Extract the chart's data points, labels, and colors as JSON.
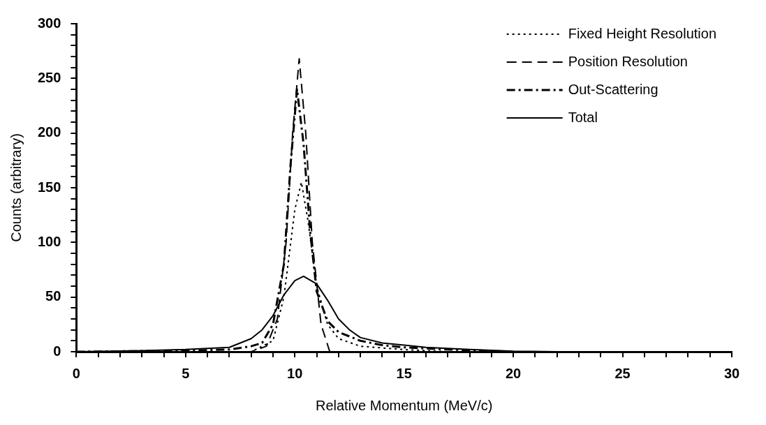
{
  "chart_data": {
    "type": "line",
    "xlabel": "Relative Momentum (MeV/c)",
    "ylabel": "Counts (arbitrary)",
    "xlim": [
      0,
      30
    ],
    "ylim": [
      0,
      300
    ],
    "xticks": [
      0,
      {
        "value": 1,
        "label": null
      },
      {
        "value": 2,
        "label": null
      },
      {
        "value": 3,
        "label": null
      },
      {
        "value": 4,
        "label": null
      },
      5,
      {
        "value": 6,
        "label": null
      },
      {
        "value": 7,
        "label": null
      },
      {
        "value": 8,
        "label": null
      },
      {
        "value": 9,
        "label": null
      },
      10,
      {
        "value": 11,
        "label": null
      },
      {
        "value": 12,
        "label": null
      },
      {
        "value": 13,
        "label": null
      },
      {
        "value": 14,
        "label": null
      },
      15,
      {
        "value": 16,
        "label": null
      },
      {
        "value": 17,
        "label": null
      },
      {
        "value": 18,
        "label": null
      },
      {
        "value": 19,
        "label": null
      },
      20,
      {
        "value": 21,
        "label": null
      },
      {
        "value": 22,
        "label": null
      },
      {
        "value": 23,
        "label": null
      },
      {
        "value": 24,
        "label": null
      },
      25,
      {
        "value": 26,
        "label": null
      },
      {
        "value": 27,
        "label": null
      },
      {
        "value": 28,
        "label": null
      },
      {
        "value": 29,
        "label": null
      },
      30
    ],
    "yticks": [
      0,
      {
        "value": 10,
        "label": null
      },
      {
        "value": 20,
        "label": null
      },
      {
        "value": 30,
        "label": null
      },
      {
        "value": 40,
        "label": null
      },
      50,
      {
        "value": 60,
        "label": null
      },
      {
        "value": 70,
        "label": null
      },
      {
        "value": 80,
        "label": null
      },
      {
        "value": 90,
        "label": null
      },
      100,
      {
        "value": 110,
        "label": null
      },
      {
        "value": 120,
        "label": null
      },
      {
        "value": 130,
        "label": null
      },
      {
        "value": 140,
        "label": null
      },
      150,
      {
        "value": 160,
        "label": null
      },
      {
        "value": 170,
        "label": null
      },
      {
        "value": 180,
        "label": null
      },
      {
        "value": 190,
        "label": null
      },
      200,
      {
        "value": 210,
        "label": null
      },
      {
        "value": 220,
        "label": null
      },
      {
        "value": 230,
        "label": null
      },
      {
        "value": 240,
        "label": null
      },
      250,
      {
        "value": 260,
        "label": null
      },
      {
        "value": 270,
        "label": null
      },
      {
        "value": 280,
        "label": null
      },
      {
        "value": 290,
        "label": null
      },
      300
    ],
    "grid": false,
    "legend": "top right",
    "marker": "none",
    "series": [
      {
        "name": "Fixed Height Resolution",
        "color": "#000000",
        "line_style": "dotted",
        "x": [
          0,
          8,
          9,
          9.5,
          10,
          10.3,
          10.6,
          11,
          11.5,
          12,
          13,
          15,
          17
        ],
        "values": [
          0,
          0,
          10,
          50,
          130,
          155,
          120,
          60,
          25,
          12,
          5,
          2,
          0
        ]
      },
      {
        "name": "Position Resolution",
        "color": "#000000",
        "line_style": "dashed",
        "x": [
          0,
          8,
          8.7,
          9.2,
          9.6,
          9.9,
          10.2,
          10.5,
          10.8,
          11.2,
          11.6
        ],
        "values": [
          0,
          0,
          5,
          30,
          100,
          200,
          268,
          200,
          100,
          25,
          0
        ]
      },
      {
        "name": "Out-Scattering",
        "color": "#000000",
        "line_style": "dashdot",
        "x": [
          0,
          5,
          7,
          8,
          8.5,
          9,
          9.5,
          9.8,
          10.1,
          10.4,
          10.7,
          11,
          11.5,
          12,
          13,
          14,
          15,
          17,
          20
        ],
        "values": [
          0,
          1,
          2,
          5,
          8,
          25,
          80,
          170,
          240,
          190,
          110,
          55,
          28,
          18,
          10,
          6,
          4,
          2,
          0
        ]
      },
      {
        "name": "Total",
        "color": "#000000",
        "line_style": "solid",
        "x": [
          0,
          3,
          5,
          7,
          8,
          8.5,
          9,
          9.5,
          10,
          10.4,
          11,
          11.5,
          12,
          12.5,
          13,
          14,
          15,
          16,
          18,
          20,
          22
        ],
        "values": [
          0,
          1,
          2,
          4,
          12,
          20,
          33,
          52,
          65,
          69,
          62,
          47,
          30,
          20,
          13,
          8,
          6,
          4,
          2,
          0.5,
          0
        ]
      }
    ]
  }
}
